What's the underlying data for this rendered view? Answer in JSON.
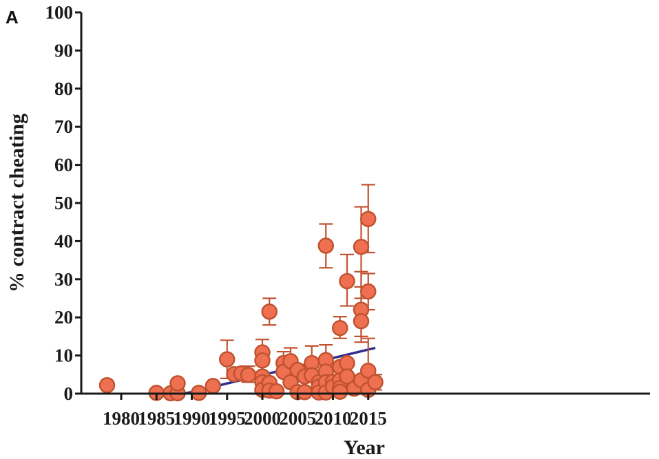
{
  "panel_label": "A",
  "colors": {
    "marker": "#ee7050",
    "marker_edge": "#c0522f",
    "trend": "#2b2f8f",
    "axis": "#1a1a1a"
  },
  "chart_data": {
    "type": "scatter",
    "title": "",
    "xlabel": "Year",
    "ylabel": "% contract cheating",
    "xlim": [
      1977.5,
      2016.5
    ],
    "ylim": [
      0,
      100
    ],
    "xticks": [
      1980,
      1985,
      1990,
      1995,
      2000,
      2005,
      2010,
      2015
    ],
    "yticks": [
      0,
      10,
      20,
      30,
      40,
      50,
      60,
      70,
      80,
      90,
      100
    ],
    "grid": false,
    "trendline": {
      "x": [
        1989.0,
        2016.0
      ],
      "y": [
        0,
        12
      ]
    },
    "points": [
      {
        "x": 1978,
        "y": 2.2
      },
      {
        "x": 1985,
        "y": 0.2
      },
      {
        "x": 1987,
        "y": 0.1
      },
      {
        "x": 1988,
        "y": 0.1
      },
      {
        "x": 1988,
        "y": 2.7
      },
      {
        "x": 1991,
        "y": 0.2
      },
      {
        "x": 1993,
        "y": 2.0
      },
      {
        "x": 1995,
        "y": 9.0,
        "err_low": 4.0,
        "err_high": 14.0
      },
      {
        "x": 1996,
        "y": 5.1
      },
      {
        "x": 1997,
        "y": 5.3
      },
      {
        "x": 1998,
        "y": 4.9,
        "err_low": 3.0,
        "err_high": 7.2
      },
      {
        "x": 2000,
        "y": 10.8,
        "err_low": 7.5,
        "err_high": 14.2
      },
      {
        "x": 2000,
        "y": 8.7
      },
      {
        "x": 2000,
        "y": 4.5
      },
      {
        "x": 2000,
        "y": 3.0
      },
      {
        "x": 2000,
        "y": 1.0
      },
      {
        "x": 2001,
        "y": 21.5,
        "err_low": 18.0,
        "err_high": 25.0
      },
      {
        "x": 2001,
        "y": 2.8
      },
      {
        "x": 2001,
        "y": 0.8
      },
      {
        "x": 2002,
        "y": 0.6
      },
      {
        "x": 2003,
        "y": 8.0,
        "err_low": 5.0,
        "err_high": 11.0
      },
      {
        "x": 2003,
        "y": 5.7
      },
      {
        "x": 2004,
        "y": 8.5,
        "err_low": 5.5,
        "err_high": 12.0
      },
      {
        "x": 2004,
        "y": 3.0
      },
      {
        "x": 2005,
        "y": 6.2
      },
      {
        "x": 2005,
        "y": 0.4
      },
      {
        "x": 2006,
        "y": 4.5
      },
      {
        "x": 2006,
        "y": 0.4
      },
      {
        "x": 2007,
        "y": 8.0,
        "err_low": 3.5,
        "err_high": 12.5
      },
      {
        "x": 2007,
        "y": 4.8
      },
      {
        "x": 2008,
        "y": 3.0
      },
      {
        "x": 2008,
        "y": 1.8
      },
      {
        "x": 2008,
        "y": 0.3
      },
      {
        "x": 2009,
        "y": 38.8,
        "err_low": 33.0,
        "err_high": 44.5
      },
      {
        "x": 2009,
        "y": 8.8,
        "err_low": 5.0,
        "err_high": 12.8
      },
      {
        "x": 2009,
        "y": 5.8
      },
      {
        "x": 2009,
        "y": 3.0
      },
      {
        "x": 2009,
        "y": 0.3
      },
      {
        "x": 2010,
        "y": 3.1
      },
      {
        "x": 2010,
        "y": 1.8
      },
      {
        "x": 2011,
        "y": 17.2,
        "err_low": 14.5,
        "err_high": 20.2
      },
      {
        "x": 2011,
        "y": 7.0
      },
      {
        "x": 2011,
        "y": 3.5
      },
      {
        "x": 2011,
        "y": 1.5
      },
      {
        "x": 2011,
        "y": 0.5
      },
      {
        "x": 2012,
        "y": 29.5,
        "err_low": 23.0,
        "err_high": 36.5
      },
      {
        "x": 2012,
        "y": 8.0
      },
      {
        "x": 2012,
        "y": 4.5
      },
      {
        "x": 2013,
        "y": 1.3
      },
      {
        "x": 2014,
        "y": 38.5,
        "err_low": 28.0,
        "err_high": 49.0
      },
      {
        "x": 2014,
        "y": 22.0,
        "err_low": 15.0,
        "err_high": 32.0
      },
      {
        "x": 2014,
        "y": 19.0,
        "err_low": 13.5,
        "err_high": 25.0
      },
      {
        "x": 2014,
        "y": 3.5
      },
      {
        "x": 2015,
        "y": 45.8,
        "err_low": 37.0,
        "err_high": 54.8
      },
      {
        "x": 2015,
        "y": 26.8,
        "err_low": 22.0,
        "err_high": 31.5
      },
      {
        "x": 2015,
        "y": 6.0,
        "err_low": 1.0,
        "err_high": 14.5
      },
      {
        "x": 2015,
        "y": 1.0
      },
      {
        "x": 2016,
        "y": 3.0,
        "err_low": 1.0,
        "err_high": 5.0
      }
    ]
  }
}
